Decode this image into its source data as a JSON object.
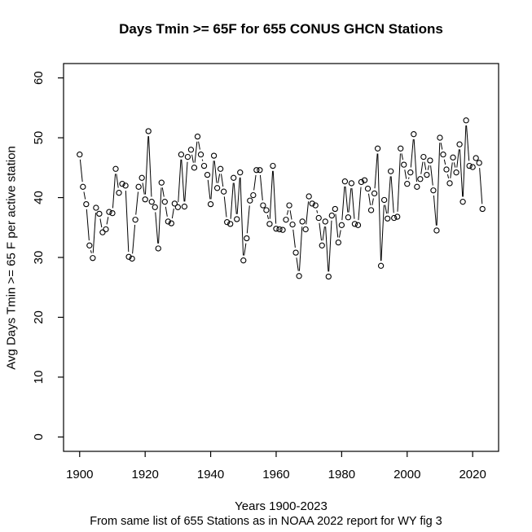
{
  "title": "Days Tmin >= 65F for 655 CONUS GHCN Stations",
  "x_axis": {
    "label": "Years 1900-2023",
    "ticks": [
      1900,
      1920,
      1940,
      1960,
      1980,
      2000,
      2020
    ]
  },
  "y_axis": {
    "label": "Avg Days Tmin >= 65 F per active station",
    "ticks": [
      0,
      10,
      20,
      30,
      40,
      50,
      60
    ]
  },
  "caption": "From same list of 655 Stations as in NOAA 2022 report for WY fig 3",
  "colors": {
    "line": "#000000",
    "point_stroke": "#000000",
    "box": "#000000",
    "background": "#ffffff"
  },
  "chart_data": {
    "type": "line",
    "style": "R base plot type='b' — open circle markers with gaps in connecting segments",
    "title": "Days Tmin >= 65F for 655 CONUS GHCN Stations",
    "xlabel": "Years 1900-2023",
    "ylabel": "Avg Days Tmin >= 65 F per active station",
    "xlim": [
      1895,
      2028
    ],
    "ylim": [
      0,
      60
    ],
    "grid": false,
    "legend": "none",
    "years": [
      1900,
      1901,
      1902,
      1903,
      1904,
      1905,
      1906,
      1907,
      1908,
      1909,
      1910,
      1911,
      1912,
      1913,
      1914,
      1915,
      1916,
      1917,
      1918,
      1919,
      1920,
      1921,
      1922,
      1923,
      1924,
      1925,
      1926,
      1927,
      1928,
      1929,
      1930,
      1931,
      1932,
      1933,
      1934,
      1935,
      1936,
      1937,
      1938,
      1939,
      1940,
      1941,
      1942,
      1943,
      1944,
      1945,
      1946,
      1947,
      1948,
      1949,
      1950,
      1951,
      1952,
      1953,
      1954,
      1955,
      1956,
      1957,
      1958,
      1959,
      1960,
      1961,
      1962,
      1963,
      1964,
      1965,
      1966,
      1967,
      1968,
      1969,
      1970,
      1971,
      1972,
      1973,
      1974,
      1975,
      1976,
      1977,
      1978,
      1979,
      1980,
      1981,
      1982,
      1983,
      1984,
      1985,
      1986,
      1987,
      1988,
      1989,
      1990,
      1991,
      1992,
      1993,
      1994,
      1995,
      1996,
      1997,
      1998,
      1999,
      2000,
      2001,
      2002,
      2003,
      2004,
      2005,
      2006,
      2007,
      2008,
      2009,
      2010,
      2011,
      2012,
      2013,
      2014,
      2015,
      2016,
      2017,
      2018,
      2019,
      2020,
      2021,
      2022,
      2023
    ],
    "series": [
      {
        "name": "Avg days Tmin >= 65F per active station",
        "values": [
          47.2,
          41.8,
          38.9,
          32.0,
          29.9,
          38.3,
          37.3,
          34.2,
          34.7,
          37.6,
          37.4,
          44.8,
          40.8,
          42.3,
          42.0,
          30.1,
          29.8,
          36.3,
          41.8,
          43.3,
          39.7,
          51.1,
          39.3,
          38.4,
          31.5,
          42.5,
          39.3,
          36.0,
          35.7,
          39.0,
          38.4,
          47.2,
          38.5,
          46.8,
          48.0,
          45.0,
          50.2,
          47.2,
          45.3,
          43.8,
          38.9,
          47.0,
          41.6,
          44.8,
          41.0,
          35.9,
          35.6,
          43.3,
          36.4,
          44.2,
          29.5,
          33.2,
          39.5,
          40.4,
          44.6,
          44.6,
          38.7,
          37.9,
          35.6,
          45.3,
          34.8,
          34.7,
          34.6,
          36.3,
          38.7,
          35.5,
          30.8,
          26.9,
          36.0,
          34.7,
          40.2,
          39.0,
          38.7,
          36.6,
          32.0,
          36.0,
          26.8,
          37.0,
          38.1,
          32.5,
          35.4,
          42.7,
          36.7,
          42.4,
          35.6,
          35.4,
          42.6,
          42.9,
          41.5,
          37.9,
          40.7,
          48.2,
          28.6,
          39.6,
          36.5,
          44.4,
          36.6,
          36.8,
          48.2,
          45.5,
          42.3,
          44.2,
          50.6,
          41.8,
          43.1,
          46.8,
          43.8,
          46.2,
          41.2,
          34.5,
          50.0,
          47.2,
          44.7,
          42.4,
          46.7,
          44.2,
          48.9,
          39.3,
          52.9,
          45.3,
          45.1,
          46.6,
          45.8,
          38.1
        ]
      }
    ]
  }
}
